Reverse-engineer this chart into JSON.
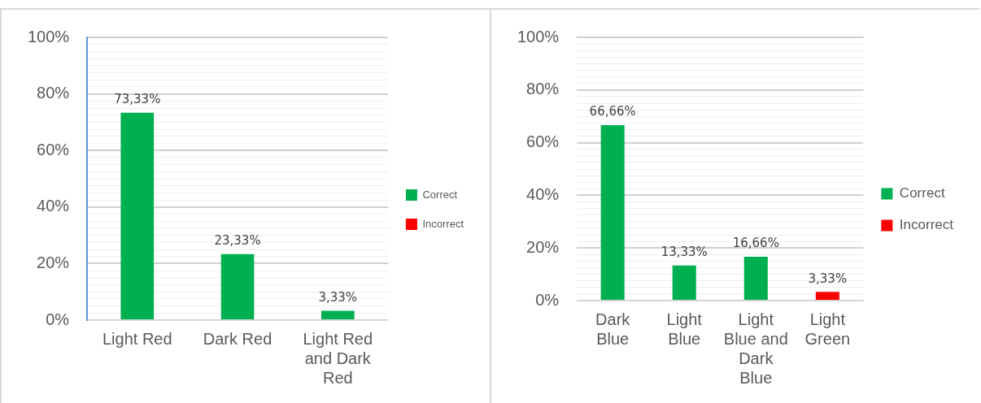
{
  "chart_data": [
    {
      "type": "bar",
      "categories": [
        "Light Red",
        "Dark Red",
        "Light Red and Dark Red"
      ],
      "stacked": true,
      "series": [
        {
          "name": "Correct",
          "color": "#00b050",
          "values": [
            73.33,
            23.33,
            3.33
          ],
          "value_labels": [
            "73,33%",
            "23,33%",
            "3,33%"
          ]
        },
        {
          "name": "Incorrect",
          "color": "#ff0000",
          "values": [
            null,
            null,
            null
          ]
        }
      ],
      "ylim": [
        0,
        100
      ],
      "yticks": [
        {
          "value": 0,
          "label": "0%"
        },
        {
          "value": 2.5,
          "label": null
        },
        {
          "value": 5,
          "label": null
        },
        {
          "value": 7.5,
          "label": null
        },
        {
          "value": 10,
          "label": null
        },
        {
          "value": 12.5,
          "label": null
        },
        {
          "value": 15,
          "label": null
        },
        {
          "value": 17.5,
          "label": null
        },
        {
          "value": 20,
          "label": "20%"
        },
        {
          "value": 22.5,
          "label": null
        },
        {
          "value": 25,
          "label": null
        },
        {
          "value": 27.5,
          "label": null
        },
        {
          "value": 30,
          "label": null
        },
        {
          "value": 32.5,
          "label": null
        },
        {
          "value": 35,
          "label": null
        },
        {
          "value": 37.5,
          "label": null
        },
        {
          "value": 40,
          "label": "40%"
        },
        {
          "value": 42.5,
          "label": null
        },
        {
          "value": 45,
          "label": null
        },
        {
          "value": 47.5,
          "label": null
        },
        {
          "value": 50,
          "label": null
        },
        {
          "value": 52.5,
          "label": null
        },
        {
          "value": 55,
          "label": null
        },
        {
          "value": 57.5,
          "label": null
        },
        {
          "value": 60,
          "label": "60%"
        },
        {
          "value": 62.5,
          "label": null
        },
        {
          "value": 65,
          "label": null
        },
        {
          "value": 67.5,
          "label": null
        },
        {
          "value": 70,
          "label": null
        },
        {
          "value": 72.5,
          "label": null
        },
        {
          "value": 75,
          "label": null
        },
        {
          "value": 77.5,
          "label": null
        },
        {
          "value": 80,
          "label": "80%"
        },
        {
          "value": 82.5,
          "label": null
        },
        {
          "value": 85,
          "label": null
        },
        {
          "value": 87.5,
          "label": null
        },
        {
          "value": 90,
          "label": null
        },
        {
          "value": 92.5,
          "label": null
        },
        {
          "value": 95,
          "label": null
        },
        {
          "value": 97.5,
          "label": null
        },
        {
          "value": 100,
          "label": "100%"
        }
      ],
      "grid": "y",
      "legend": "right"
    },
    {
      "type": "bar",
      "categories": [
        "Dark Blue",
        "Light Blue",
        "Light Blue and Dark Blue",
        "Light Green"
      ],
      "stacked": true,
      "series": [
        {
          "name": "Correct",
          "color": "#00b050",
          "values": [
            66.66,
            13.33,
            16.66,
            null
          ],
          "value_labels": [
            "66,66%",
            "13,33%",
            "16,66%",
            null
          ]
        },
        {
          "name": "Incorrect",
          "color": "#ff0000",
          "values": [
            null,
            null,
            null,
            3.33
          ],
          "value_labels": [
            null,
            null,
            null,
            "3,33%"
          ]
        }
      ],
      "ylim": [
        0,
        100
      ],
      "yticks": [
        {
          "value": 0,
          "label": "0%"
        },
        {
          "value": 2.5,
          "label": null
        },
        {
          "value": 5,
          "label": null
        },
        {
          "value": 7.5,
          "label": null
        },
        {
          "value": 10,
          "label": null
        },
        {
          "value": 12.5,
          "label": null
        },
        {
          "value": 15,
          "label": null
        },
        {
          "value": 17.5,
          "label": null
        },
        {
          "value": 20,
          "label": "20%"
        },
        {
          "value": 22.5,
          "label": null
        },
        {
          "value": 25,
          "label": null
        },
        {
          "value": 27.5,
          "label": null
        },
        {
          "value": 30,
          "label": null
        },
        {
          "value": 32.5,
          "label": null
        },
        {
          "value": 35,
          "label": null
        },
        {
          "value": 37.5,
          "label": null
        },
        {
          "value": 40,
          "label": "40%"
        },
        {
          "value": 42.5,
          "label": null
        },
        {
          "value": 45,
          "label": null
        },
        {
          "value": 47.5,
          "label": null
        },
        {
          "value": 50,
          "label": null
        },
        {
          "value": 52.5,
          "label": null
        },
        {
          "value": 55,
          "label": null
        },
        {
          "value": 57.5,
          "label": null
        },
        {
          "value": 60,
          "label": "60%"
        },
        {
          "value": 62.5,
          "label": null
        },
        {
          "value": 65,
          "label": null
        },
        {
          "value": 67.5,
          "label": null
        },
        {
          "value": 70,
          "label": null
        },
        {
          "value": 72.5,
          "label": null
        },
        {
          "value": 75,
          "label": null
        },
        {
          "value": 77.5,
          "label": null
        },
        {
          "value": 80,
          "label": "80%"
        },
        {
          "value": 82.5,
          "label": null
        },
        {
          "value": 85,
          "label": null
        },
        {
          "value": 87.5,
          "label": null
        },
        {
          "value": 90,
          "label": null
        },
        {
          "value": 92.5,
          "label": null
        },
        {
          "value": 95,
          "label": null
        },
        {
          "value": 97.5,
          "label": null
        },
        {
          "value": 100,
          "label": "100%"
        }
      ],
      "grid": "y",
      "legend": "right"
    }
  ]
}
